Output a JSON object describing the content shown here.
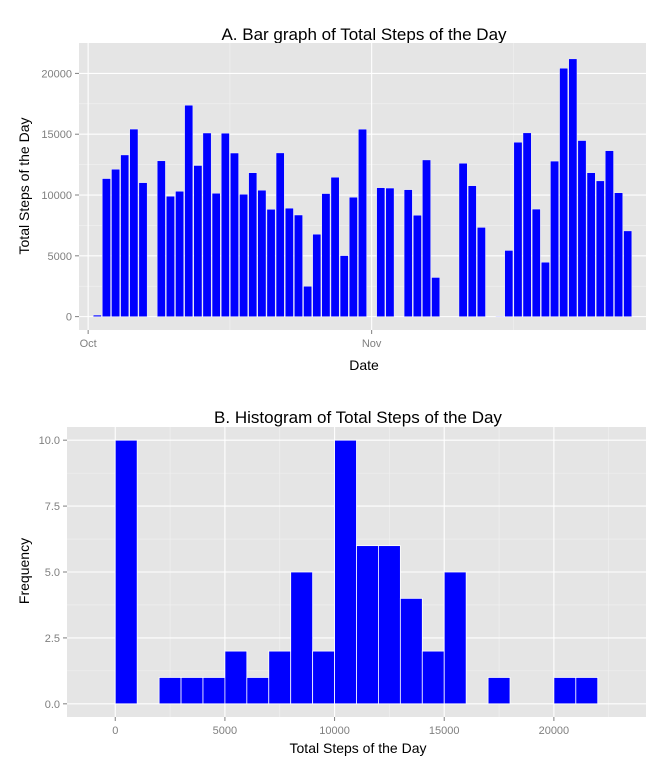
{
  "colors": {
    "panel": "#E5E5E5",
    "grid_major": "#FFFFFF",
    "grid_minor": "#F2F2F2",
    "bar_fill": "#0000FF",
    "bar_outline": "#FFFFFF",
    "tick_text": "#7F7F7F",
    "tick_mark": "#7F7F7F"
  },
  "chart_data": [
    {
      "type": "bar",
      "title": "A. Bar graph of Total Steps of the Day",
      "xlabel": "Date",
      "ylabel": "Total Steps of the Day",
      "x_ticks": [
        {
          "label": "Oct",
          "date": "2012-10-01"
        },
        {
          "label": "Nov",
          "date": "2012-11-01"
        }
      ],
      "xlim": [
        "2012-09-30",
        "2012-12-01"
      ],
      "y_ticks": [
        0,
        5000,
        10000,
        15000,
        20000
      ],
      "ylim": [
        -1100,
        22500
      ],
      "grid": true,
      "dates": [
        "2012-10-02",
        "2012-10-03",
        "2012-10-04",
        "2012-10-05",
        "2012-10-06",
        "2012-10-07",
        "2012-10-09",
        "2012-10-10",
        "2012-10-11",
        "2012-10-12",
        "2012-10-13",
        "2012-10-14",
        "2012-10-15",
        "2012-10-16",
        "2012-10-17",
        "2012-10-18",
        "2012-10-19",
        "2012-10-20",
        "2012-10-21",
        "2012-10-22",
        "2012-10-23",
        "2012-10-24",
        "2012-10-25",
        "2012-10-26",
        "2012-10-27",
        "2012-10-28",
        "2012-10-29",
        "2012-10-30",
        "2012-10-31",
        "2012-11-02",
        "2012-11-03",
        "2012-11-05",
        "2012-11-06",
        "2012-11-07",
        "2012-11-08",
        "2012-11-11",
        "2012-11-12",
        "2012-11-13",
        "2012-11-15",
        "2012-11-16",
        "2012-11-17",
        "2012-11-18",
        "2012-11-19",
        "2012-11-20",
        "2012-11-21",
        "2012-11-22",
        "2012-11-23",
        "2012-11-24",
        "2012-11-25",
        "2012-11-26",
        "2012-11-27",
        "2012-11-28",
        "2012-11-29"
      ],
      "values": [
        126,
        11352,
        12116,
        13294,
        15420,
        11015,
        12811,
        9900,
        10304,
        17382,
        12426,
        15098,
        10139,
        15084,
        13452,
        10056,
        11829,
        10395,
        8821,
        13460,
        8918,
        8355,
        2492,
        6778,
        10119,
        11458,
        5018,
        9819,
        15414,
        10600,
        10571,
        10439,
        8334,
        12883,
        3219,
        12608,
        10765,
        7336,
        41,
        5441,
        14339,
        15110,
        8841,
        4472,
        12787,
        20427,
        21194,
        14478,
        11834,
        11162,
        13646,
        10183,
        7047
      ]
    },
    {
      "type": "bar",
      "title": "B. Histogram of Total Steps of the Day",
      "xlabel": "Total Steps of the Day",
      "ylabel": "Frequency",
      "bin_width": 1000,
      "bin_starts": [
        0,
        2000,
        3000,
        4000,
        5000,
        6000,
        7000,
        8000,
        9000,
        10000,
        11000,
        12000,
        13000,
        14000,
        15000,
        17000,
        20000,
        21000
      ],
      "values": [
        10,
        1,
        1,
        1,
        2,
        1,
        2,
        5,
        2,
        10,
        6,
        6,
        4,
        2,
        5,
        1,
        1,
        1
      ],
      "x_ticks": [
        0,
        5000,
        10000,
        15000,
        20000
      ],
      "xlim": [
        -2200,
        24200
      ],
      "y_ticks": [
        0.0,
        2.5,
        5.0,
        7.5,
        10.0
      ],
      "y_tick_labels": [
        "0.0",
        "2.5",
        "5.0",
        "7.5",
        "10.0"
      ],
      "ylim": [
        -0.5,
        10.5
      ],
      "grid": true
    }
  ]
}
